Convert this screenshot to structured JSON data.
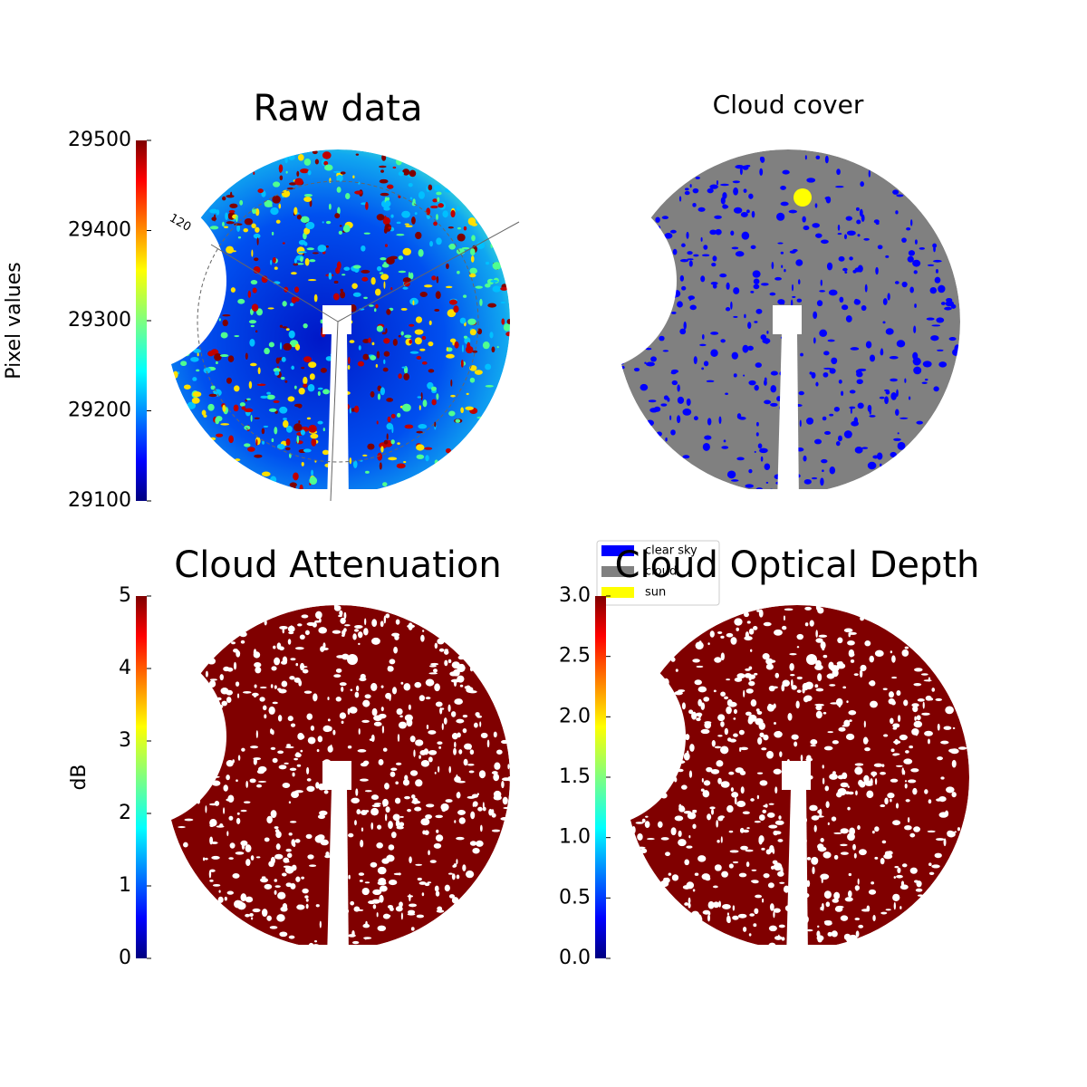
{
  "chart_data": [
    {
      "type": "image",
      "title": "Raw data",
      "annotation": "120",
      "colormap": "jet",
      "colorbar": {
        "label": "Pixel values",
        "lim": [
          29100,
          29500
        ],
        "ticks": [
          29100,
          29200,
          29300,
          29400,
          29500
        ]
      }
    },
    {
      "type": "image",
      "title": "Cloud cover",
      "series": [
        {
          "name": "clear sky",
          "color": "#0000ff"
        },
        {
          "name": "cloud",
          "color": "#808080"
        },
        {
          "name": "sun",
          "color": "#ffff00"
        }
      ]
    },
    {
      "type": "image",
      "title": "Cloud Attenuation",
      "colormap": "jet",
      "colorbar": {
        "label": "dB",
        "lim": [
          0,
          5
        ],
        "ticks": [
          0,
          1,
          2,
          3,
          4,
          5
        ]
      }
    },
    {
      "type": "image",
      "title": "Cloud Optical Depth",
      "colormap": "jet",
      "colorbar": {
        "lim": [
          0,
          3
        ],
        "ticks": [
          {
            "value": 0,
            "label": "0.0"
          },
          {
            "value": 0.5,
            "label": "0.5"
          },
          {
            "value": 1,
            "label": "1.0"
          },
          {
            "value": 1.5,
            "label": "1.5"
          },
          {
            "value": 2,
            "label": "2.0"
          },
          {
            "value": 2.5,
            "label": "2.5"
          },
          {
            "value": 3,
            "label": "3.0"
          }
        ]
      }
    }
  ]
}
